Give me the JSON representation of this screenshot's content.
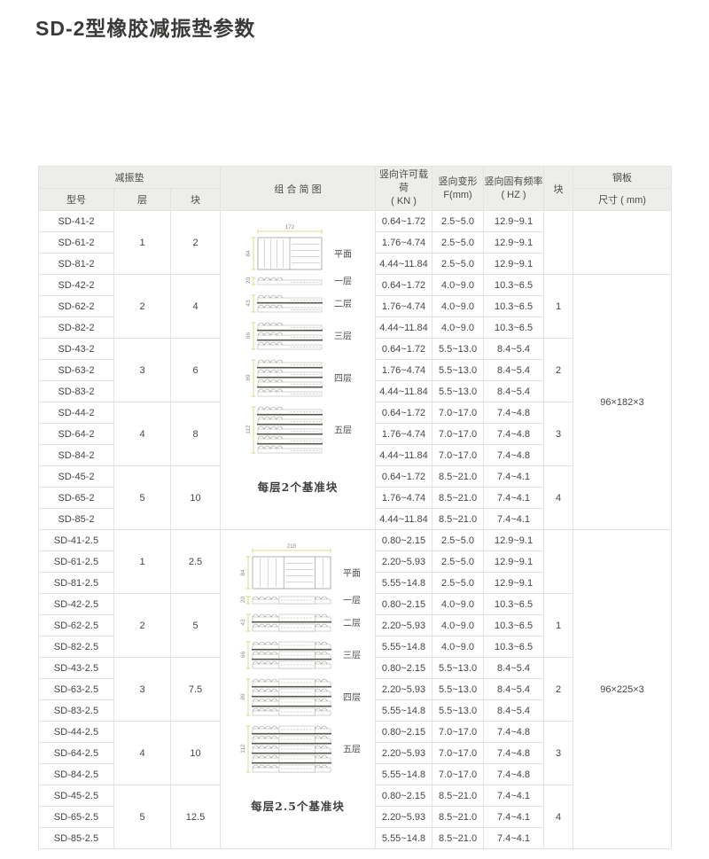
{
  "page": {
    "title": "SD-2型橡胶减振垫参数"
  },
  "colors": {
    "header_bg": "#ededea",
    "border": "#e3e3e0",
    "dimension_line": "#d5cf6f",
    "text": "#454543"
  },
  "table": {
    "headers": {
      "damper_group": "减振垫",
      "model": "型号",
      "layers": "层",
      "blocks": "块",
      "diagram": "组 合 简 图",
      "load1": "竖向许可载荷",
      "load2": "( KN )",
      "deform1": "竖向变形",
      "deform2": "F(mm)",
      "freq1": "竖向固有频率",
      "freq2": "( HZ )",
      "stack_blocks": "块",
      "steel_group": "钢板",
      "steel_size": "尺寸 ( mm)"
    },
    "sections": [
      {
        "steel_cells": [
          {
            "rows": 3,
            "text": ""
          },
          {
            "rows": 12,
            "text": "96×182×3"
          }
        ],
        "diagram": {
          "segments": 2,
          "plan_width_label": "172",
          "plan_height_label": "84",
          "stack_height_labels": [
            "20",
            "43",
            "66",
            "89",
            "112"
          ],
          "row_labels": [
            "平面",
            "一层",
            "二层",
            "三层",
            "四层",
            "五层"
          ],
          "caption": "每层2个基准块"
        },
        "groups": [
          {
            "layers": "1",
            "blocks": "2",
            "stack": "",
            "rows": [
              {
                "model": "SD-41-2",
                "load": "0.64~1.72",
                "deform": "2.5~5.0",
                "freq": "12.9~9.1"
              },
              {
                "model": "SD-61-2",
                "load": "1.76~4.74",
                "deform": "2.5~5.0",
                "freq": "12.9~9.1"
              },
              {
                "model": "SD-81-2",
                "load": "4.44~11.84",
                "deform": "2.5~5.0",
                "freq": "12.9~9.1"
              }
            ]
          },
          {
            "layers": "2",
            "blocks": "4",
            "stack": "1",
            "rows": [
              {
                "model": "SD-42-2",
                "load": "0.64~1.72",
                "deform": "4.0~9.0",
                "freq": "10.3~6.5"
              },
              {
                "model": "SD-62-2",
                "load": "1.76~4.74",
                "deform": "4.0~9.0",
                "freq": "10.3~6.5"
              },
              {
                "model": "SD-82-2",
                "load": "4.44~11.84",
                "deform": "4.0~9.0",
                "freq": "10.3~6.5"
              }
            ]
          },
          {
            "layers": "3",
            "blocks": "6",
            "stack": "2",
            "rows": [
              {
                "model": "SD-43-2",
                "load": "0.64~1.72",
                "deform": "5.5~13.0",
                "freq": "8.4~5.4"
              },
              {
                "model": "SD-63-2",
                "load": "1.76~4.74",
                "deform": "5.5~13.0",
                "freq": "8.4~5.4"
              },
              {
                "model": "SD-83-2",
                "load": "4.44~11.84",
                "deform": "5.5~13.0",
                "freq": "8.4~5.4"
              }
            ]
          },
          {
            "layers": "4",
            "blocks": "8",
            "stack": "3",
            "rows": [
              {
                "model": "SD-44-2",
                "load": "0.64~1.72",
                "deform": "7.0~17.0",
                "freq": "7.4~4.8"
              },
              {
                "model": "SD-64-2",
                "load": "1.76~4.74",
                "deform": "7.0~17.0",
                "freq": "7.4~4.8"
              },
              {
                "model": "SD-84-2",
                "load": "4.44~11.84",
                "deform": "7.0~17.0",
                "freq": "7.4~4.8"
              }
            ]
          },
          {
            "layers": "5",
            "blocks": "10",
            "stack": "4",
            "rows": [
              {
                "model": "SD-45-2",
                "load": "0.64~1.72",
                "deform": "8.5~21.0",
                "freq": "7.4~4.1"
              },
              {
                "model": "SD-65-2",
                "load": "1.76~4.74",
                "deform": "8.5~21.0",
                "freq": "7.4~4.1"
              },
              {
                "model": "SD-85-2",
                "load": "4.44~11.84",
                "deform": "8.5~21.0",
                "freq": "7.4~4.1"
              }
            ]
          }
        ]
      },
      {
        "steel_cells": [
          {
            "rows": 15,
            "text": "96×225×3"
          }
        ],
        "diagram": {
          "segments": 3,
          "plan_width_label": "215",
          "plan_height_label": "84",
          "stack_height_labels": [
            "20",
            "43",
            "66",
            "89",
            "112"
          ],
          "row_labels": [
            "平面",
            "一层",
            "二层",
            "三层",
            "四层",
            "五层"
          ],
          "caption": "每层2.5个基准块"
        },
        "groups": [
          {
            "layers": "1",
            "blocks": "2.5",
            "stack": "",
            "rows": [
              {
                "model": "SD-41-2.5",
                "load": "0.80~2.15",
                "deform": "2.5~5.0",
                "freq": "12.9~9.1"
              },
              {
                "model": "SD-61-2.5",
                "load": "2.20~5.93",
                "deform": "2.5~5.0",
                "freq": "12.9~9.1"
              },
              {
                "model": "SD-81-2.5",
                "load": "5.55~14.8",
                "deform": "2.5~5.0",
                "freq": "12.9~9.1"
              }
            ]
          },
          {
            "layers": "2",
            "blocks": "5",
            "stack": "1",
            "rows": [
              {
                "model": "SD-42-2.5",
                "load": "0.80~2.15",
                "deform": "4.0~9.0",
                "freq": "10.3~6.5"
              },
              {
                "model": "SD-62-2.5",
                "load": "2.20~5.93",
                "deform": "4.0~9.0",
                "freq": "10.3~6.5"
              },
              {
                "model": "SD-82-2.5",
                "load": "5.55~14.8",
                "deform": "4.0~9.0",
                "freq": "10.3~6.5"
              }
            ]
          },
          {
            "layers": "3",
            "blocks": "7.5",
            "stack": "2",
            "rows": [
              {
                "model": "SD-43-2.5",
                "load": "0.80~2.15",
                "deform": "5.5~13.0",
                "freq": "8.4~5.4"
              },
              {
                "model": "SD-63-2.5",
                "load": "2.20~5.93",
                "deform": "5.5~13.0",
                "freq": "8.4~5.4"
              },
              {
                "model": "SD-83-2.5",
                "load": "5.55~14.8",
                "deform": "5.5~13.0",
                "freq": "8.4~5.4"
              }
            ]
          },
          {
            "layers": "4",
            "blocks": "10",
            "stack": "3",
            "rows": [
              {
                "model": "SD-44-2.5",
                "load": "0.80~2.15",
                "deform": "7.0~17.0",
                "freq": "7.4~4.8"
              },
              {
                "model": "SD-64-2.5",
                "load": "2.20~5.93",
                "deform": "7.0~17.0",
                "freq": "7.4~4.8"
              },
              {
                "model": "SD-84-2.5",
                "load": "5.55~14.8",
                "deform": "7.0~17.0",
                "freq": "7.4~4.8"
              }
            ]
          },
          {
            "layers": "5",
            "blocks": "12.5",
            "stack": "4",
            "rows": [
              {
                "model": "SD-45-2.5",
                "load": "0.80~2.15",
                "deform": "8.5~21.0",
                "freq": "7.4~4.1"
              },
              {
                "model": "SD-65-2.5",
                "load": "2.20~5.93",
                "deform": "8.5~21.0",
                "freq": "7.4~4.1"
              },
              {
                "model": "SD-85-2.5",
                "load": "5.55~14.8",
                "deform": "8.5~21.0",
                "freq": "7.4~4.1"
              }
            ]
          }
        ]
      }
    ]
  }
}
